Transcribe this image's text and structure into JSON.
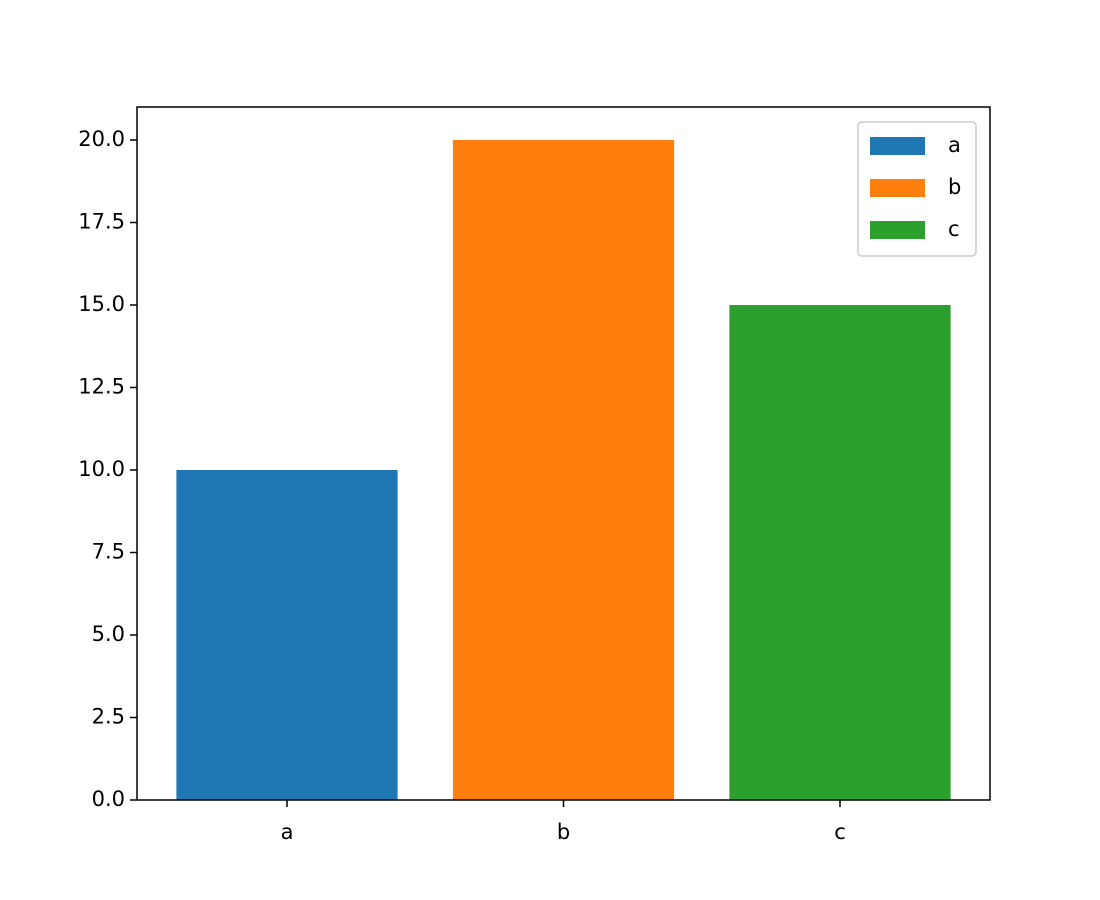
{
  "chart_data": {
    "type": "bar",
    "categories": [
      "a",
      "b",
      "c"
    ],
    "series": [
      {
        "name": "a",
        "color": "#1f77b4",
        "values": [
          10,
          null,
          null
        ]
      },
      {
        "name": "b",
        "color": "#ff7f0e",
        "values": [
          null,
          20,
          null
        ]
      },
      {
        "name": "c",
        "color": "#2ca02c",
        "values": [
          null,
          null,
          15
        ]
      }
    ],
    "ylim": [
      0,
      21
    ],
    "yticks": [
      {
        "value": 0,
        "label": "0.0"
      },
      2.5,
      {
        "value": 5,
        "label": "5.0"
      },
      7.5,
      {
        "value": 10,
        "label": "10.0"
      },
      12.5,
      {
        "value": 15,
        "label": "15.0"
      },
      17.5,
      {
        "value": 20,
        "label": "20.0"
      }
    ],
    "grid": false,
    "legend": "upper-right"
  }
}
